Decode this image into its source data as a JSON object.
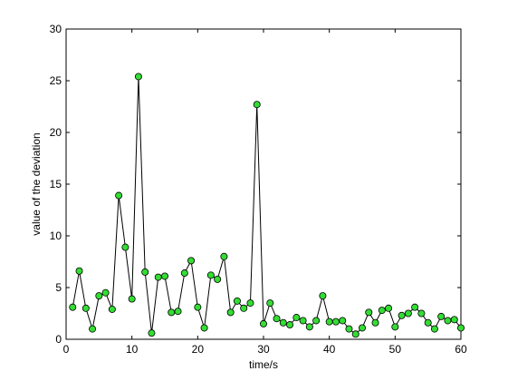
{
  "chart_data": {
    "type": "line",
    "xlabel": "time/s",
    "ylabel": "value of the deviation",
    "xlim": [
      0,
      60
    ],
    "ylim": [
      0,
      30
    ],
    "xticks": [
      0,
      10,
      20,
      30,
      40,
      50,
      60
    ],
    "yticks": [
      0,
      5,
      10,
      15,
      20,
      25,
      30
    ],
    "grid": false,
    "box": true,
    "line_color": "#000000",
    "marker": "circle",
    "marker_fill": "#33dd33",
    "marker_edge": "#000000",
    "series": [
      {
        "x": [
          1,
          2,
          3,
          4,
          5,
          6,
          7,
          8,
          9,
          10,
          11,
          12,
          13,
          14,
          15,
          16,
          17,
          18,
          19,
          20,
          21,
          22,
          23,
          24,
          25,
          26,
          27,
          28,
          29,
          30,
          31,
          32,
          33,
          34,
          35,
          36,
          37,
          38,
          39,
          40,
          41,
          42,
          43,
          44,
          45,
          46,
          47,
          48,
          49,
          50,
          51,
          52,
          53,
          54,
          55,
          56,
          57,
          58,
          59,
          60
        ],
        "values": [
          3.1,
          6.6,
          3.0,
          1.0,
          4.2,
          4.5,
          2.9,
          13.9,
          8.9,
          3.9,
          25.4,
          6.5,
          0.6,
          6.0,
          6.1,
          2.6,
          2.7,
          6.4,
          7.6,
          3.1,
          1.1,
          6.2,
          5.8,
          8.0,
          2.6,
          3.7,
          3.0,
          3.5,
          22.7,
          1.5,
          3.5,
          2.0,
          1.6,
          1.4,
          2.1,
          1.8,
          1.2,
          1.8,
          4.2,
          1.7,
          1.7,
          1.8,
          1.0,
          0.5,
          1.1,
          2.6,
          1.6,
          2.8,
          3.0,
          1.2,
          2.3,
          2.5,
          3.1,
          2.5,
          1.6,
          1.0,
          2.2,
          1.8,
          1.9,
          1.1
        ]
      }
    ]
  }
}
